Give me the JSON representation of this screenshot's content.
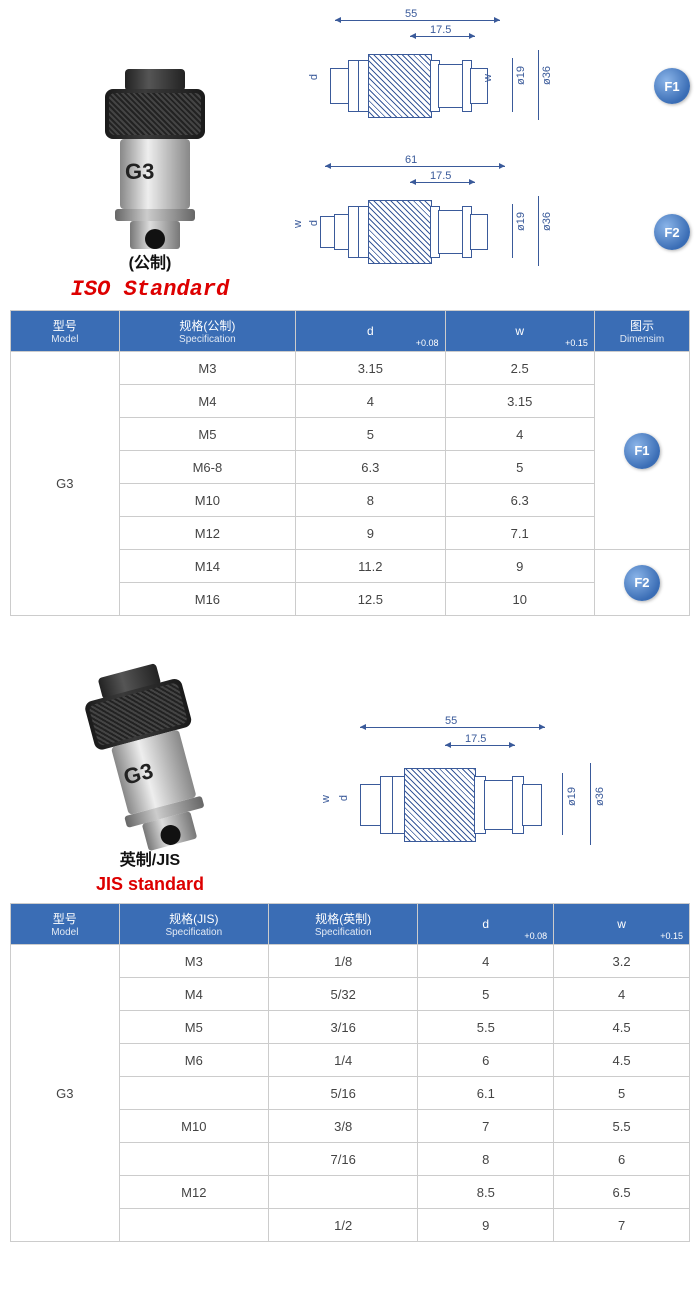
{
  "colors": {
    "header_bg": "#3a6db5",
    "header_fg": "#ffffff",
    "border": "#cccccc",
    "accent": "#d00000",
    "dim": "#3a5a9a"
  },
  "iso": {
    "product_cn": "(公制)",
    "product_en": "ISO Standard",
    "diagrams": [
      {
        "length": "55",
        "inset": "17.5",
        "d": "d",
        "w": "w",
        "dia1": "ø19",
        "dia2": "ø36",
        "badge": "F1"
      },
      {
        "length": "61",
        "inset": "17.5",
        "d": "d",
        "w": "w",
        "dia1": "ø19",
        "dia2": "ø36",
        "badge": "F2"
      }
    ],
    "headers": [
      {
        "cn": "型号",
        "en": "Model"
      },
      {
        "cn": "规格(公制)",
        "en": "Specification"
      },
      {
        "cn": "d",
        "en": "",
        "tol": "+0.08"
      },
      {
        "cn": "w",
        "en": "",
        "tol": "+0.15"
      },
      {
        "cn": "图示",
        "en": "Dimensim"
      }
    ],
    "model": "G3",
    "rows": [
      {
        "spec": "M3",
        "d": "3.15",
        "w": "2.5"
      },
      {
        "spec": "M4",
        "d": "4",
        "w": "3.15"
      },
      {
        "spec": "M5",
        "d": "5",
        "w": "4"
      },
      {
        "spec": "M6-8",
        "d": "6.3",
        "w": "5"
      },
      {
        "spec": "M10",
        "d": "8",
        "w": "6.3"
      },
      {
        "spec": "M12",
        "d": "9",
        "w": "7.1"
      },
      {
        "spec": "M14",
        "d": "11.2",
        "w": "9"
      },
      {
        "spec": "M16",
        "d": "12.5",
        "w": "10"
      }
    ],
    "badge1": "F1",
    "badge2": "F2"
  },
  "jis": {
    "product_cn": "英制/JIS",
    "product_en": "JIS standard",
    "diagram": {
      "length": "55",
      "inset": "17.5",
      "d": "d",
      "w": "w",
      "dia1": "ø19",
      "dia2": "ø36"
    },
    "headers": [
      {
        "cn": "型号",
        "en": "Model"
      },
      {
        "cn": "规格(JIS)",
        "en": "Specification"
      },
      {
        "cn": "规格(英制)",
        "en": "Specification"
      },
      {
        "cn": "d",
        "en": "",
        "tol": "+0.08"
      },
      {
        "cn": "w",
        "en": "",
        "tol": "+0.15"
      }
    ],
    "model": "G3",
    "rows": [
      {
        "jis": "M3",
        "imp": "1/8",
        "d": "4",
        "w": "3.2"
      },
      {
        "jis": "M4",
        "imp": "5/32",
        "d": "5",
        "w": "4"
      },
      {
        "jis": "M5",
        "imp": "3/16",
        "d": "5.5",
        "w": "4.5"
      },
      {
        "jis": "M6",
        "imp": "1/4",
        "d": "6",
        "w": "4.5"
      },
      {
        "jis": "",
        "imp": "5/16",
        "d": "6.1",
        "w": "5"
      },
      {
        "jis": "M10",
        "imp": "3/8",
        "d": "7",
        "w": "5.5"
      },
      {
        "jis": "",
        "imp": "7/16",
        "d": "8",
        "w": "6"
      },
      {
        "jis": "M12",
        "imp": "",
        "d": "8.5",
        "w": "6.5"
      },
      {
        "jis": "",
        "imp": "1/2",
        "d": "9",
        "w": "7"
      }
    ]
  }
}
